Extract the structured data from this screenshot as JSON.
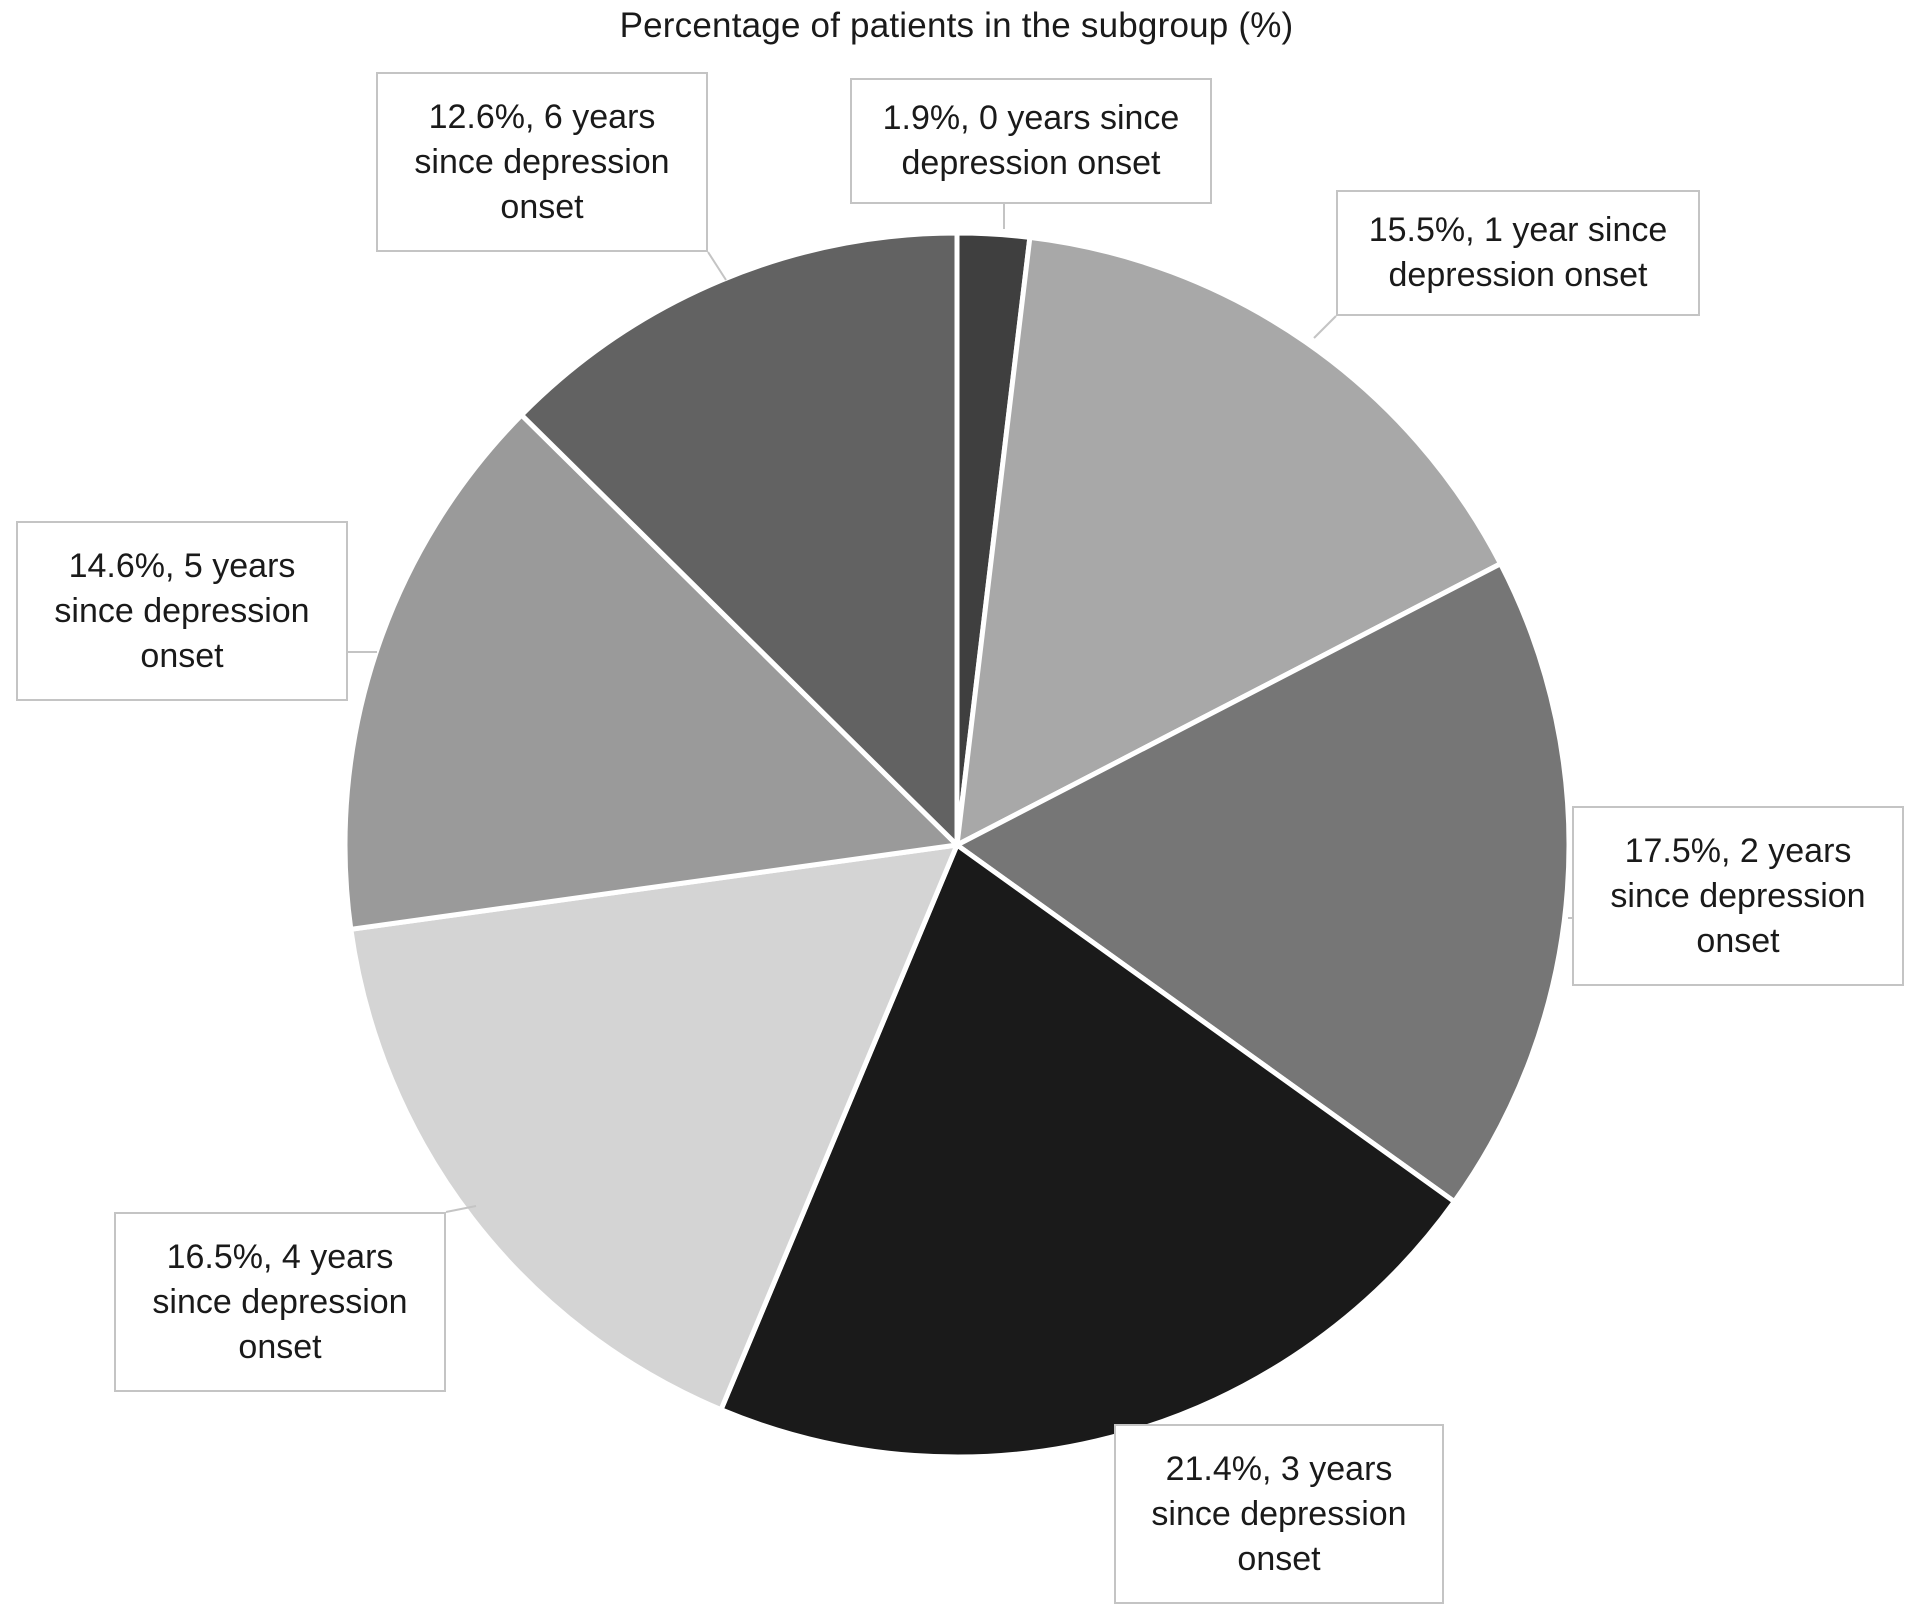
{
  "chart_data": {
    "type": "pie",
    "title": "Percentage of patients in the subgroup (%)",
    "start_angle_deg": 0,
    "direction": "clockwise",
    "slices": [
      {
        "label": "1.9%, 0 years since depression onset",
        "value": 1.9,
        "color": "#3f3f3f"
      },
      {
        "label": "15.5%, 1 year since depression onset",
        "value": 15.5,
        "color": "#a8a8a8"
      },
      {
        "label": "17.5%, 2 years since depression onset",
        "value": 17.5,
        "color": "#767676"
      },
      {
        "label": "21.4%, 3 years since depression onset",
        "value": 21.4,
        "color": "#1a1a1a"
      },
      {
        "label": "16.5%, 4 years since depression onset",
        "value": 16.5,
        "color": "#d4d4d4"
      },
      {
        "label": "14.6%, 5 years since depression onset",
        "value": 14.6,
        "color": "#9a9a9a"
      },
      {
        "label": "12.6%, 6 years since depression onset",
        "value": 12.6,
        "color": "#626262"
      }
    ],
    "callouts": [
      [
        "1.9%, 0 years since",
        "depression onset"
      ],
      [
        "15.5%, 1 year since",
        "depression onset"
      ],
      [
        "17.5%, 2 years",
        "since depression",
        "onset"
      ],
      [
        "21.4%, 3 years",
        "since depression",
        "onset"
      ],
      [
        "16.5%, 4 years",
        "since depression",
        "onset"
      ],
      [
        "14.6%, 5 years",
        "since depression",
        "onset"
      ],
      [
        "12.6%, 6 years",
        "since depression",
        "onset"
      ]
    ]
  }
}
